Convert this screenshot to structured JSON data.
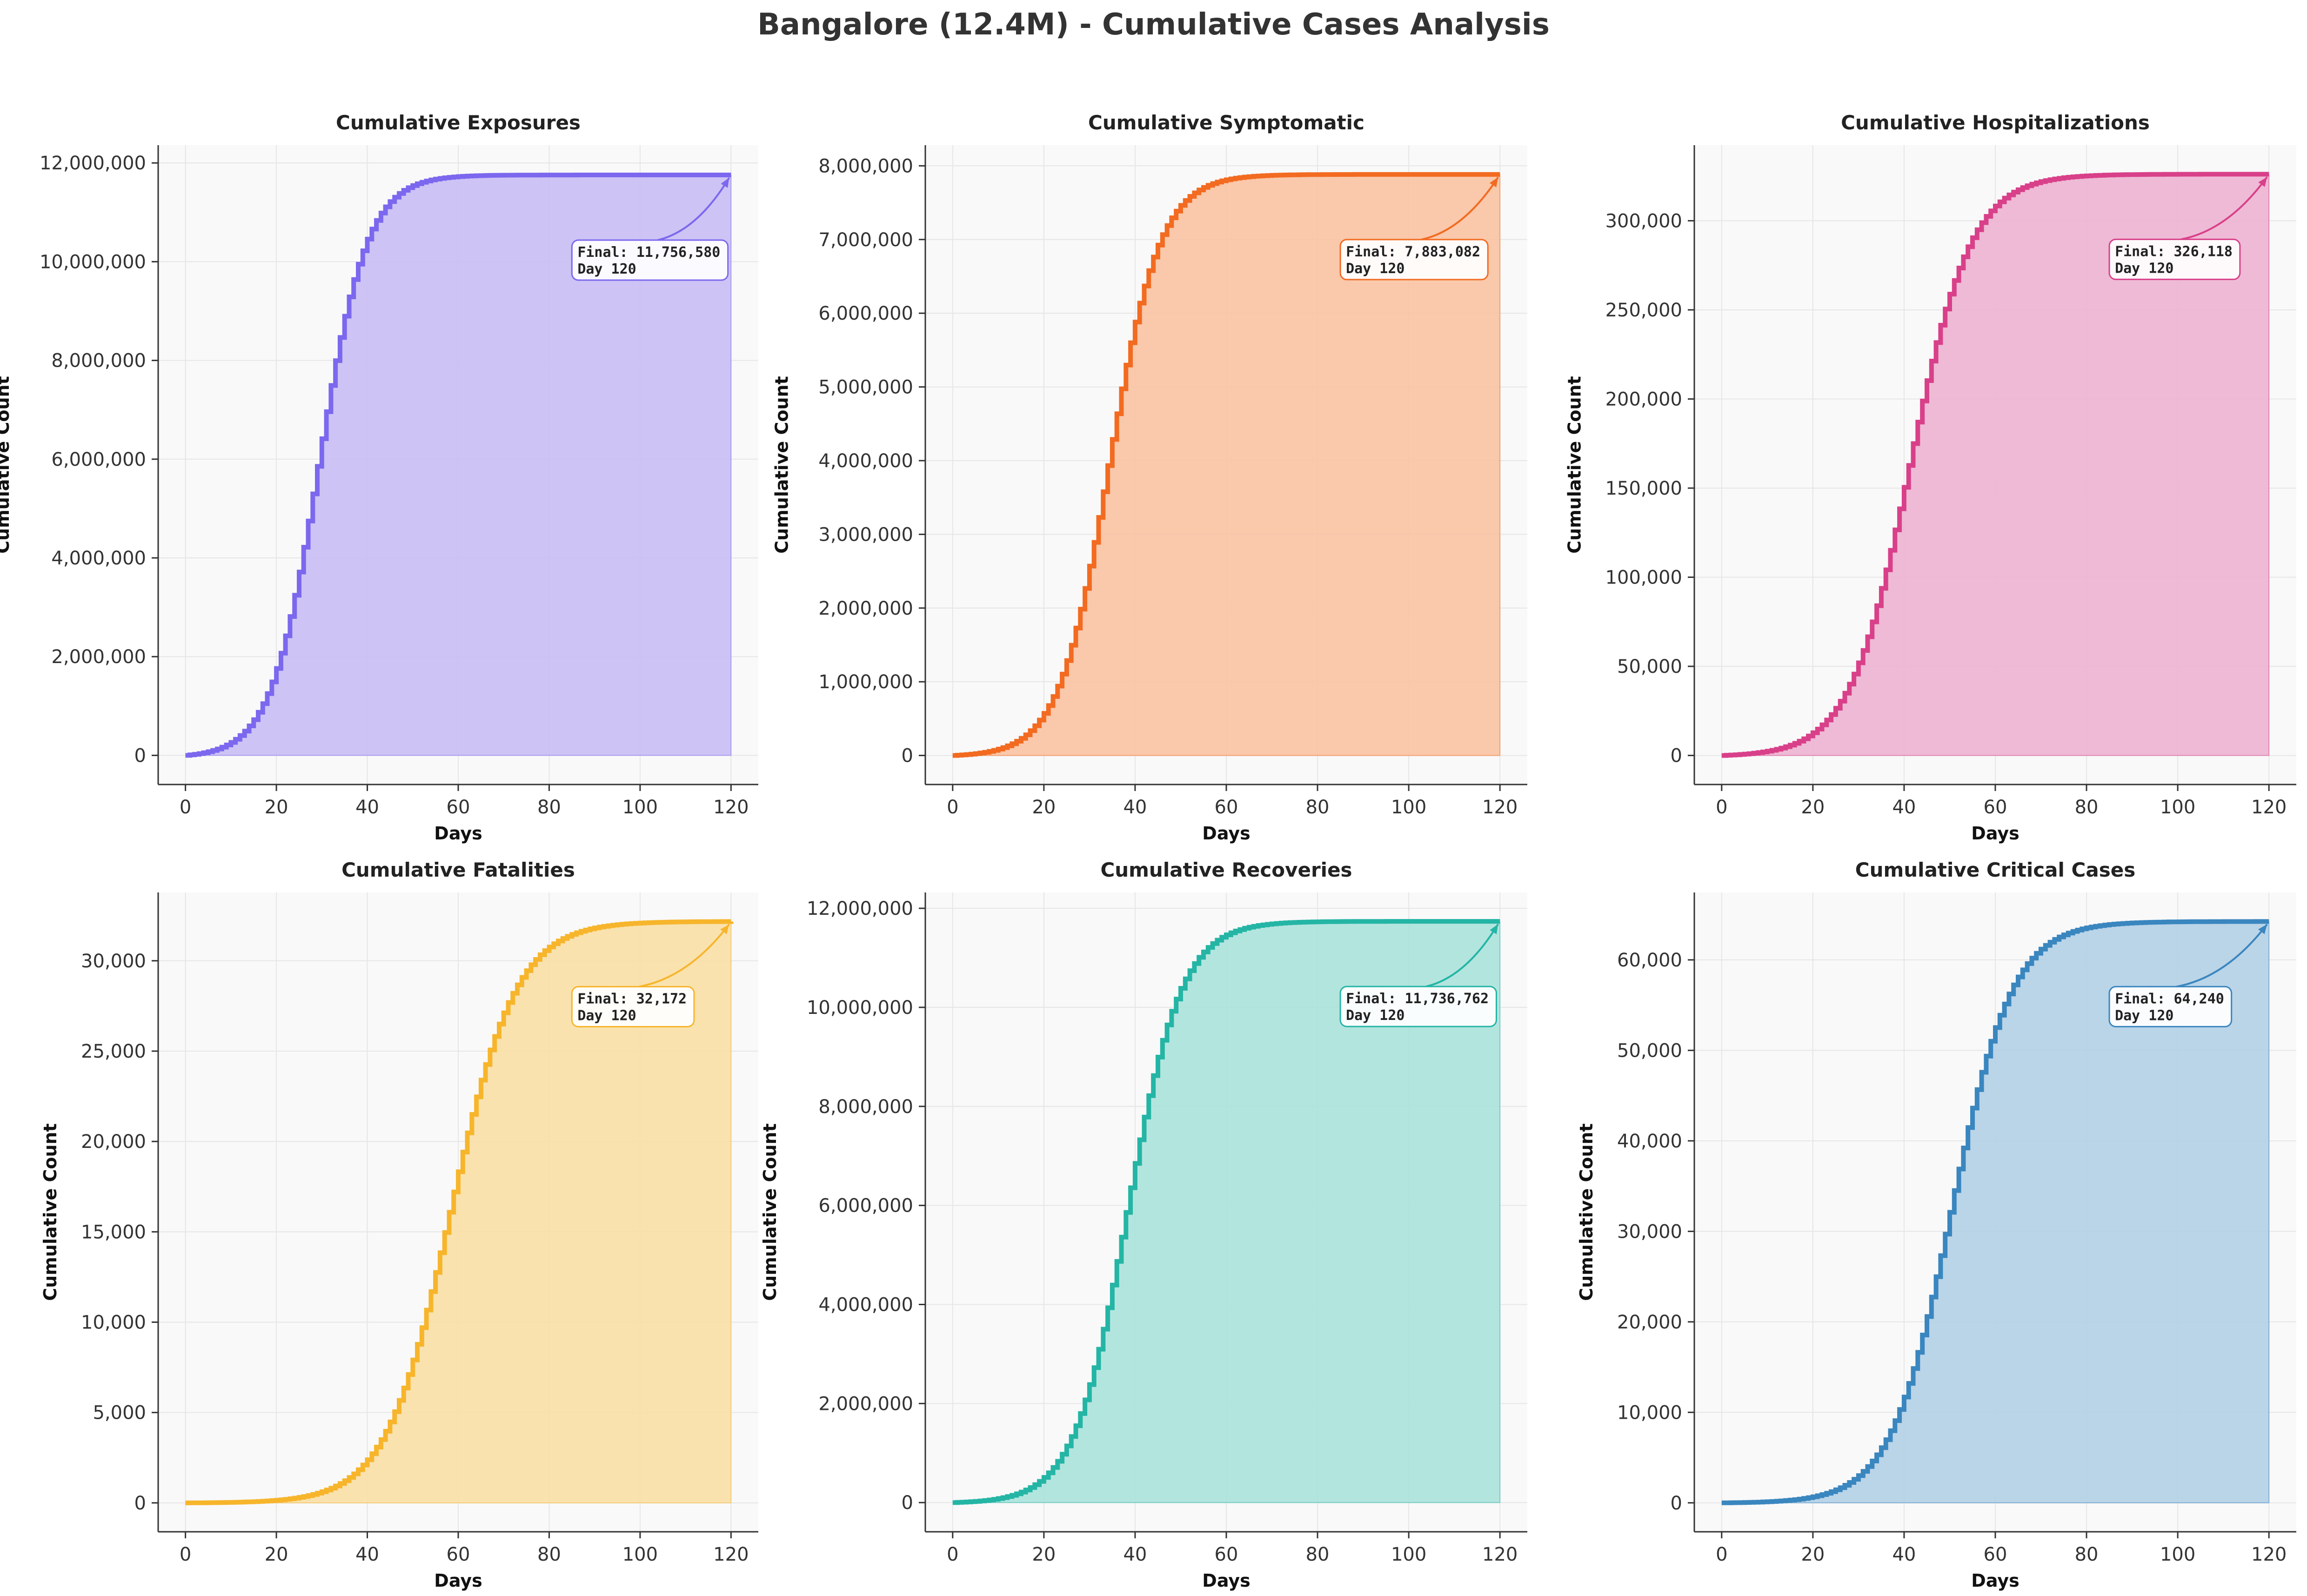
{
  "figure": {
    "title": "Bangalore (12.4M) - Cumulative Cases Analysis"
  },
  "chart_data": [
    {
      "type": "area",
      "title": "Cumulative Exposures",
      "xlabel": "Days",
      "ylabel": "Cumulative Count",
      "xlim": [
        -6,
        126
      ],
      "ylim": [
        -590000,
        12360000
      ],
      "xticks": [
        0,
        20,
        40,
        60,
        80,
        100,
        120
      ],
      "yticks": [
        0,
        2000000,
        4000000,
        6000000,
        8000000,
        10000000,
        12000000
      ],
      "ytick_labels": [
        "0",
        "2,000,000",
        "4,000,000",
        "6,000,000",
        "8,000,000",
        "10,000,000",
        "12,000,000"
      ],
      "color": "#7b68ee",
      "fill": "#c8bdf4",
      "final_value": 11756580,
      "final_day": 120,
      "curve": {
        "midpoint": 29,
        "rate": 0.19
      },
      "annotation": {
        "line1": "Final: 11,756,580",
        "line2": "Day 120"
      },
      "grid": true
    },
    {
      "type": "area",
      "title": "Cumulative Symptomatic",
      "xlabel": "Days",
      "ylabel": "Cumulative Count",
      "xlim": [
        -6,
        126
      ],
      "ylim": [
        -394000,
        8280000
      ],
      "xticks": [
        0,
        20,
        40,
        60,
        80,
        100,
        120
      ],
      "yticks": [
        0,
        1000000,
        2000000,
        3000000,
        4000000,
        5000000,
        6000000,
        7000000,
        8000000
      ],
      "ytick_labels": [
        "0",
        "1,000,000",
        "2,000,000",
        "3,000,000",
        "4,000,000",
        "5,000,000",
        "6,000,000",
        "7,000,000",
        "8,000,000"
      ],
      "color": "#f26b21",
      "fill": "#f9c2a2",
      "final_value": 7883082,
      "final_day": 120,
      "curve": {
        "midpoint": 34,
        "rate": 0.18
      },
      "annotation": {
        "line1": "Final: 7,883,082",
        "line2": "Day 120"
      },
      "grid": true
    },
    {
      "type": "area",
      "title": "Cumulative Hospitalizations",
      "xlabel": "Days",
      "ylabel": "Cumulative Count",
      "xlim": [
        -6,
        126
      ],
      "ylim": [
        -16300,
        342400
      ],
      "xticks": [
        0,
        20,
        40,
        60,
        80,
        100,
        120
      ],
      "yticks": [
        0,
        50000,
        100000,
        150000,
        200000,
        250000,
        300000
      ],
      "ytick_labels": [
        "0",
        "50,000",
        "100,000",
        "150,000",
        "200,000",
        "250,000",
        "300,000"
      ],
      "color": "#d9408a",
      "fill": "#ecb2d0",
      "final_value": 326118,
      "final_day": 120,
      "curve": {
        "midpoint": 41,
        "rate": 0.15
      },
      "annotation": {
        "line1": "Final: 326,118",
        "line2": "Day 120"
      },
      "grid": true
    },
    {
      "type": "area",
      "title": "Cumulative Fatalities",
      "xlabel": "Days",
      "ylabel": "Cumulative Count",
      "xlim": [
        -6,
        126
      ],
      "ylim": [
        -1600,
        33780
      ],
      "xticks": [
        0,
        20,
        40,
        60,
        80,
        100,
        120
      ],
      "yticks": [
        0,
        5000,
        10000,
        15000,
        20000,
        25000,
        30000
      ],
      "ytick_labels": [
        "0",
        "5,000",
        "10,000",
        "15,000",
        "20,000",
        "25,000",
        "30,000"
      ],
      "color": "#f7b52c",
      "fill": "#f8dfa5",
      "final_value": 32172,
      "final_day": 120,
      "curve": {
        "midpoint": 58,
        "rate": 0.14
      },
      "annotation": {
        "line1": "Final: 32,172",
        "line2": "Day 120"
      },
      "grid": true
    },
    {
      "type": "area",
      "title": "Cumulative Recoveries",
      "xlabel": "Days",
      "ylabel": "Cumulative Count",
      "xlim": [
        -6,
        126
      ],
      "ylim": [
        -590000,
        12320000
      ],
      "xticks": [
        0,
        20,
        40,
        60,
        80,
        100,
        120
      ],
      "yticks": [
        0,
        2000000,
        4000000,
        6000000,
        8000000,
        10000000,
        12000000
      ],
      "ytick_labels": [
        "0",
        "2,000,000",
        "4,000,000",
        "6,000,000",
        "8,000,000",
        "10,000,000",
        "12,000,000"
      ],
      "color": "#24b5a5",
      "fill": "#abe2dc",
      "final_value": 11736762,
      "final_day": 120,
      "curve": {
        "midpoint": 38,
        "rate": 0.17
      },
      "annotation": {
        "line1": "Final: 11,736,762",
        "line2": "Day 120"
      },
      "grid": true
    },
    {
      "type": "area",
      "title": "Cumulative Critical Cases",
      "xlabel": "Days",
      "ylabel": "Cumulative Count",
      "xlim": [
        -6,
        126
      ],
      "ylim": [
        -3200,
        67450
      ],
      "xticks": [
        0,
        20,
        40,
        60,
        80,
        100,
        120
      ],
      "yticks": [
        0,
        10000,
        20000,
        30000,
        40000,
        50000,
        60000
      ],
      "ytick_labels": [
        "0",
        "10,000",
        "20,000",
        "30,000",
        "40,000",
        "50,000",
        "60,000"
      ],
      "color": "#3a86bf",
      "fill": "#b3cfe5",
      "final_value": 64240,
      "final_day": 120,
      "curve": {
        "midpoint": 50,
        "rate": 0.15
      },
      "annotation": {
        "line1": "Final: 64,240",
        "line2": "Day 120"
      },
      "grid": true
    }
  ]
}
